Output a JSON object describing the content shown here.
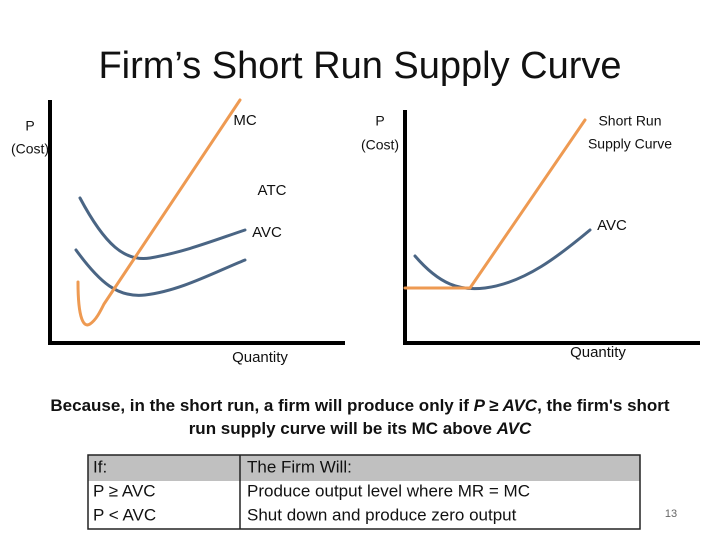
{
  "title": "Firm’s Short Run Supply Curve",
  "left_graph": {
    "y_label_lines": [
      "P",
      "(Cost)"
    ],
    "mc_label": "MC",
    "atc_label": "ATC",
    "avc_label": "AVC",
    "x_label": "Quantity"
  },
  "right_graph": {
    "y_label_lines": [
      "P",
      "(Cost)"
    ],
    "supply_label_lines": [
      "Short Run",
      "Supply Curve"
    ],
    "avc_label": "AVC",
    "x_label": "Quantity"
  },
  "caption": {
    "lines": [
      [
        "Because, in the short run, a firm will produce only if ",
        "P ≥ AVC",
        ", the firm's short"
      ],
      [
        "run supply curve will be its MC above ",
        "AVC"
      ]
    ]
  },
  "table": {
    "header": [
      "If:",
      "The Firm Will:"
    ],
    "rows": [
      [
        "P ≥ AVC",
        "Produce output level where MR = MC"
      ],
      [
        "P < AVC",
        "Shut down and produce zero output"
      ]
    ]
  },
  "page_number": "13"
}
